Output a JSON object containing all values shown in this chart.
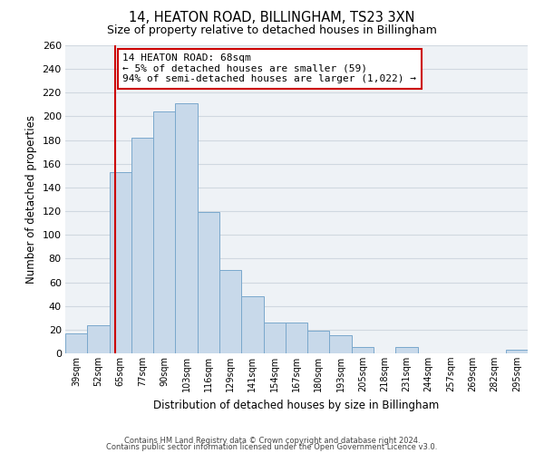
{
  "title": "14, HEATON ROAD, BILLINGHAM, TS23 3XN",
  "subtitle": "Size of property relative to detached houses in Billingham",
  "xlabel": "Distribution of detached houses by size in Billingham",
  "ylabel": "Number of detached properties",
  "bin_labels": [
    "39sqm",
    "52sqm",
    "65sqm",
    "77sqm",
    "90sqm",
    "103sqm",
    "116sqm",
    "129sqm",
    "141sqm",
    "154sqm",
    "167sqm",
    "180sqm",
    "193sqm",
    "205sqm",
    "218sqm",
    "231sqm",
    "244sqm",
    "257sqm",
    "269sqm",
    "282sqm",
    "295sqm"
  ],
  "bar_heights": [
    17,
    24,
    153,
    182,
    204,
    211,
    119,
    70,
    48,
    26,
    26,
    19,
    15,
    5,
    0,
    5,
    0,
    0,
    0,
    0,
    3
  ],
  "bar_color": "#c8d9ea",
  "bar_edge_color": "#7aa8cc",
  "grid_color": "#d0d8e0",
  "vline_color": "#cc0000",
  "annotation_box_color": "#cc0000",
  "annotation_line1": "14 HEATON ROAD: 68sqm",
  "annotation_line2": "← 5% of detached houses are smaller (59)",
  "annotation_line3": "94% of semi-detached houses are larger (1,022) →",
  "ylim": [
    0,
    260
  ],
  "yticks": [
    0,
    20,
    40,
    60,
    80,
    100,
    120,
    140,
    160,
    180,
    200,
    220,
    240,
    260
  ],
  "footnote1": "Contains HM Land Registry data © Crown copyright and database right 2024.",
  "footnote2": "Contains public sector information licensed under the Open Government Licence v3.0.",
  "background_color": "#ffffff",
  "plot_bg_color": "#eef2f6"
}
